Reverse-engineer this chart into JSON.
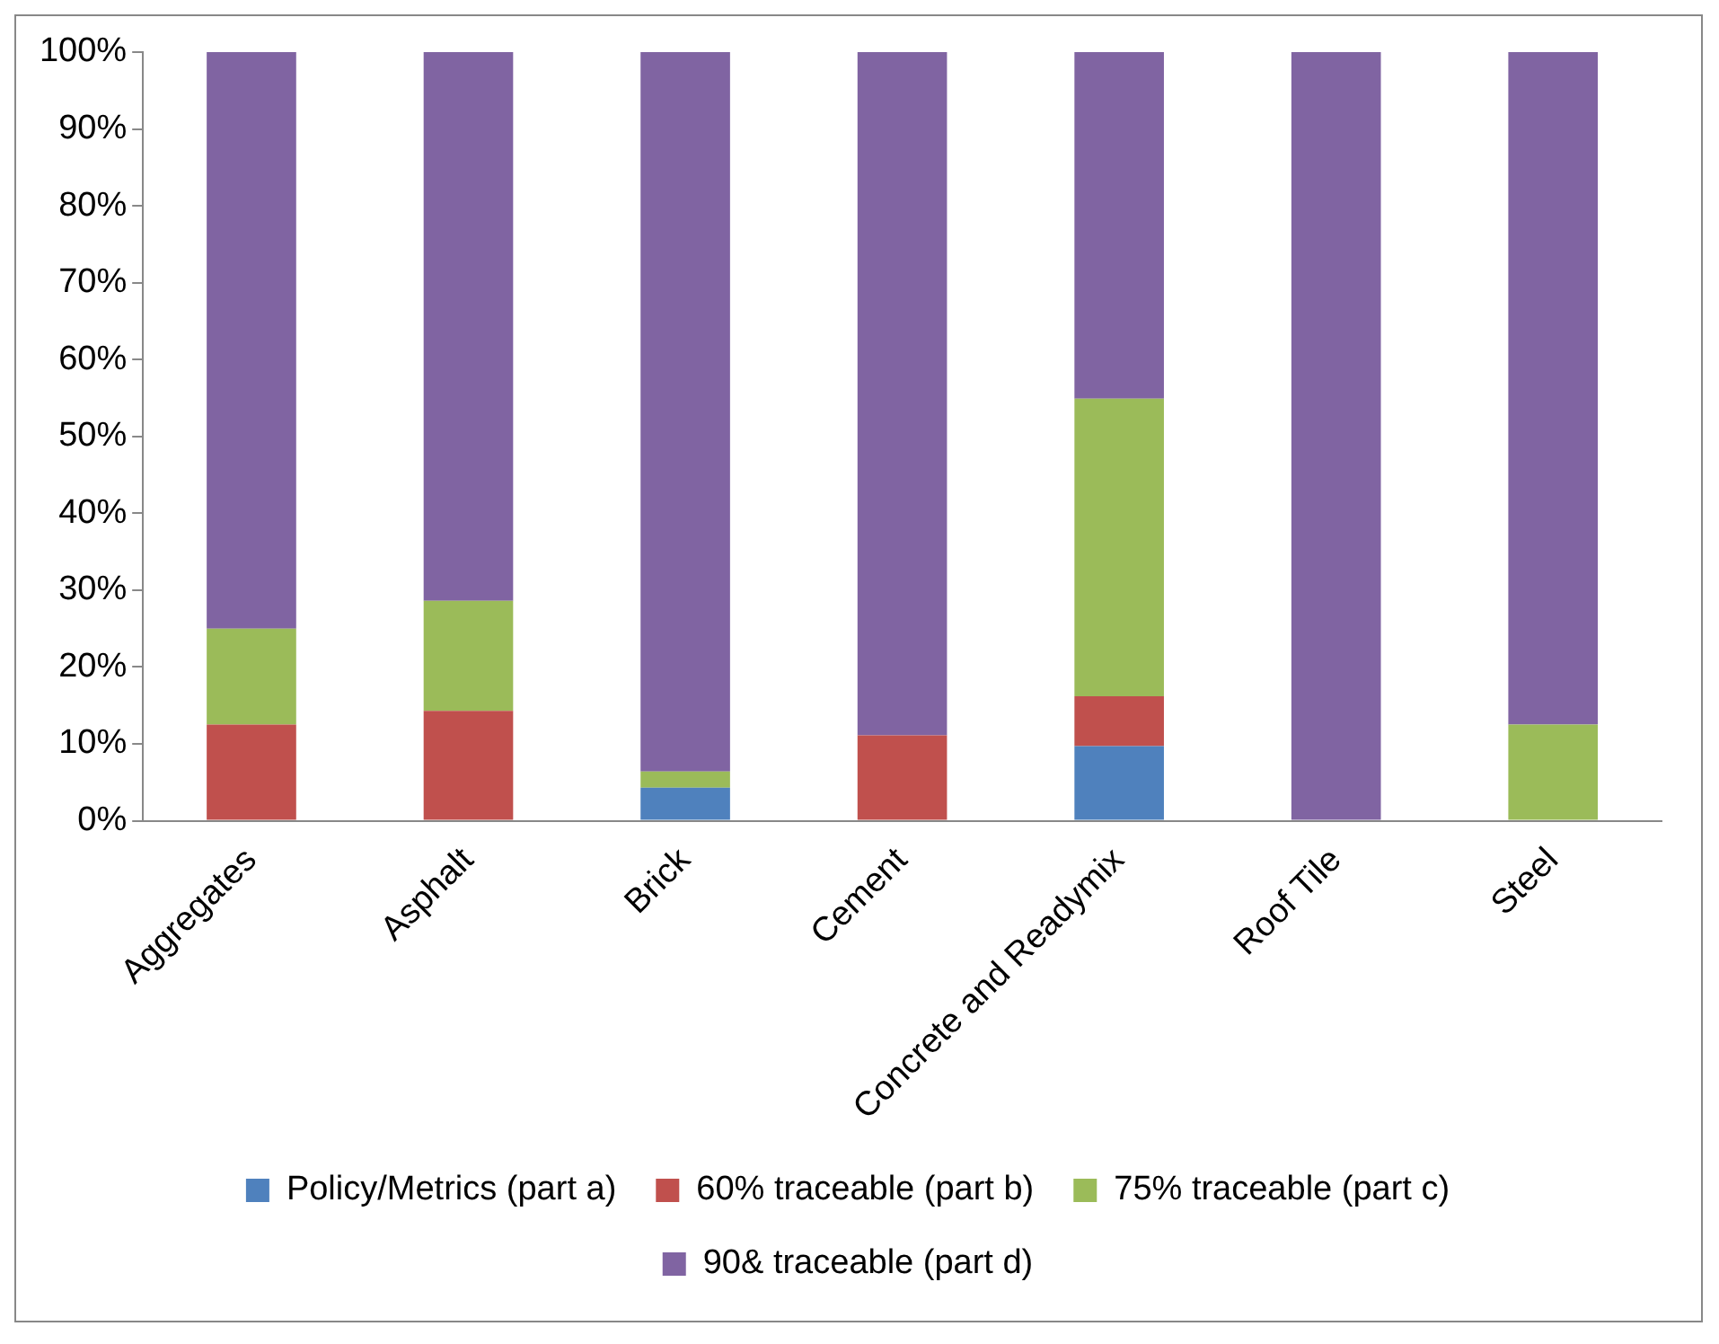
{
  "chart_data": {
    "type": "bar",
    "stacked": true,
    "categories": [
      "Aggregates",
      "Asphalt",
      "Brick",
      "Cement",
      "Concrete and Readymix",
      "Roof Tile",
      "Steel"
    ],
    "series": [
      {
        "name": "Policy/Metrics (part a)",
        "color": "#4f81bd",
        "values": [
          0,
          0,
          4.3,
          0,
          9.7,
          0,
          0
        ]
      },
      {
        "name": "60% traceable (part b)",
        "color": "#c0504d",
        "values": [
          12.5,
          14.3,
          0,
          11.1,
          6.5,
          0,
          0
        ]
      },
      {
        "name": "75% traceable (part c)",
        "color": "#9bbb59",
        "values": [
          12.5,
          14.3,
          2.1,
          0,
          38.7,
          0,
          12.5
        ]
      },
      {
        "name": "90& traceable (part d)",
        "color": "#8064a2",
        "values": [
          75,
          71.4,
          93.6,
          88.9,
          45.1,
          100,
          87.5
        ]
      }
    ],
    "ylim": [
      0,
      100
    ],
    "yticks": [
      {
        "value": 0,
        "label": "0%"
      },
      {
        "value": 10,
        "label": "10%"
      },
      {
        "value": 20,
        "label": "20%"
      },
      {
        "value": 30,
        "label": "30%"
      },
      {
        "value": 40,
        "label": "40%"
      },
      {
        "value": 50,
        "label": "50%"
      },
      {
        "value": 60,
        "label": "60%"
      },
      {
        "value": 70,
        "label": "70%"
      },
      {
        "value": 80,
        "label": "80%"
      },
      {
        "value": 90,
        "label": "90%"
      },
      {
        "value": 100,
        "label": "100%"
      }
    ],
    "grid": false,
    "legend": "bottom"
  }
}
